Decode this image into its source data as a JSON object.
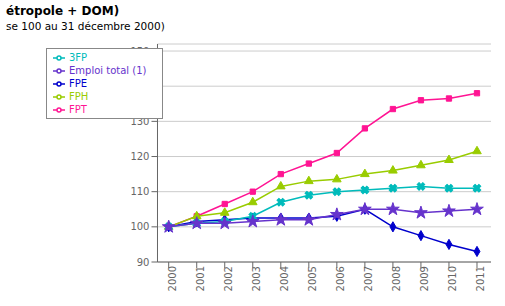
{
  "chart_data": {
    "type": "line",
    "title": "étropole + DOM)",
    "subtitle": "se 100 au 31 décembre 2000)",
    "x": [
      2000,
      2001,
      2002,
      2003,
      2004,
      2005,
      2006,
      2007,
      2008,
      2009,
      2010,
      2011
    ],
    "xlim": [
      1999.6,
      2011.5
    ],
    "xticks": [
      2000,
      2001,
      2002,
      2003,
      2004,
      2005,
      2006,
      2007,
      2008,
      2009,
      2010,
      2011
    ],
    "ylim": [
      90,
      152
    ],
    "yticks": [
      90,
      100,
      110,
      120,
      130,
      140,
      150
    ],
    "grid": true,
    "legend": "upper left",
    "series": [
      {
        "name": "FPE",
        "color": "#0000CC",
        "marker": "diamond",
        "values": [
          100,
          101.5,
          102,
          102.5,
          102.5,
          102.5,
          103,
          105,
          100,
          97.5,
          95,
          93
        ]
      },
      {
        "name": "FPT",
        "color": "#FF1493",
        "marker": "square",
        "values": [
          100,
          103,
          106.5,
          110,
          115,
          118,
          121,
          128,
          133.5,
          136,
          136.5,
          138
        ]
      },
      {
        "name": "FPH",
        "color": "#99CC00",
        "marker": "triangle",
        "values": [
          100,
          103,
          104,
          107,
          111.5,
          113,
          113.5,
          115,
          116,
          117.5,
          119,
          121.5
        ]
      },
      {
        "name": "3FP",
        "color": "#00BBBB",
        "marker": "x",
        "values": [
          100,
          101,
          101.5,
          103,
          107,
          109,
          110,
          110.5,
          111,
          111.5,
          111,
          111
        ]
      },
      {
        "name": "Emploi total (1)",
        "color": "#6633CC",
        "marker": "star",
        "values": [
          100,
          101,
          101,
          101.5,
          102,
          102,
          103.5,
          105,
          105,
          104,
          104.5,
          105
        ]
      }
    ]
  }
}
